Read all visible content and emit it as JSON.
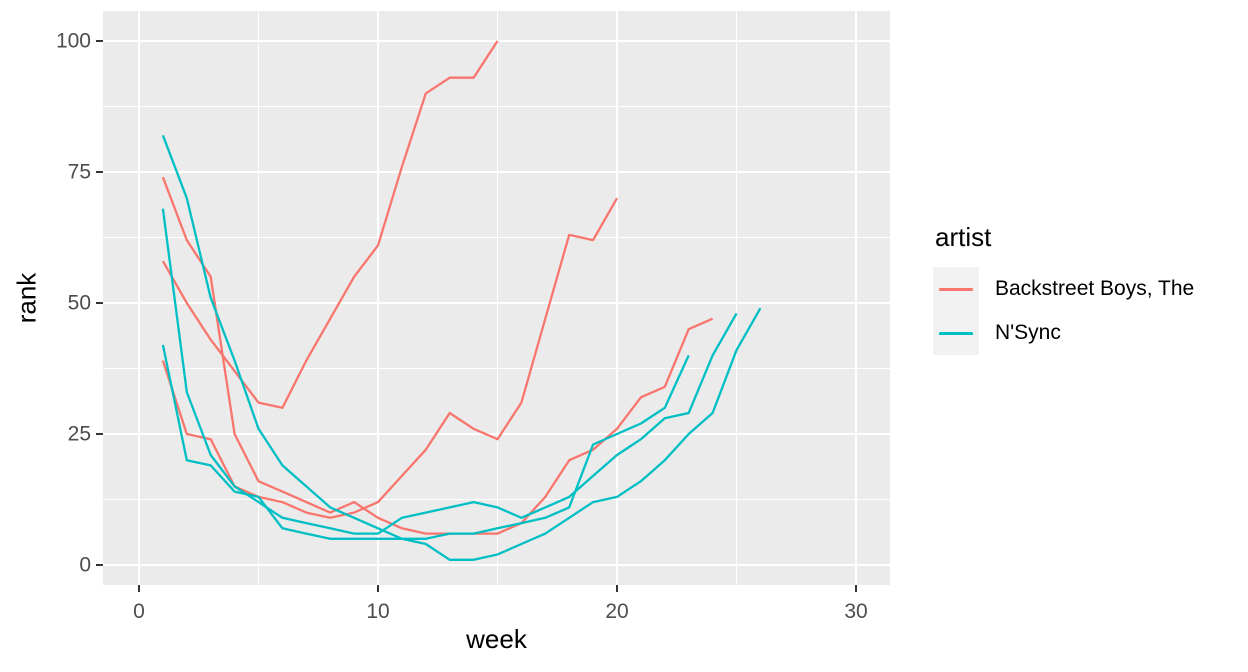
{
  "figure": {
    "background": "#FFFFFF",
    "panel_background": "#EBEBEB",
    "grid_color": "#FFFFFF",
    "tick_color": "#333333",
    "tick_label_color": "#4D4D4D",
    "axis_title_color": "#000000"
  },
  "chart_data": {
    "type": "line",
    "title": "",
    "xlabel": "week",
    "ylabel": "rank",
    "xlim": [
      -1.5,
      31.5
    ],
    "ylim": [
      -5,
      105
    ],
    "x_major_ticks": [
      0,
      10,
      20,
      30
    ],
    "x_minor_ticks": [
      5,
      15,
      25
    ],
    "y_major_ticks": [
      0,
      25,
      50,
      75,
      100
    ],
    "y_minor_ticks": [
      12.5,
      37.5,
      62.5,
      87.5
    ],
    "grid": true,
    "legend": {
      "title": "artist",
      "position": "right",
      "entries": [
        {
          "label": "Backstreet Boys, The",
          "color": "#F8766D"
        },
        {
          "label": "N'Sync",
          "color": "#00BFC4"
        }
      ]
    },
    "series": [
      {
        "artist": "Backstreet Boys, The",
        "color": "#F8766D",
        "start_week": 1,
        "values": [
          74,
          62,
          55,
          25,
          16,
          14,
          12,
          10,
          12,
          9,
          7,
          6,
          6,
          6,
          6,
          8,
          13,
          20,
          22,
          26,
          32,
          34,
          45,
          47
        ]
      },
      {
        "artist": "Backstreet Boys, The",
        "color": "#F8766D",
        "start_week": 1,
        "values": [
          58,
          50,
          43,
          37,
          31,
          30,
          39,
          47,
          55,
          61,
          76,
          90,
          93,
          93,
          100
        ]
      },
      {
        "artist": "Backstreet Boys, The",
        "color": "#F8766D",
        "start_week": 1,
        "values": [
          39,
          25,
          24,
          15,
          13,
          12,
          10,
          9,
          10,
          12,
          17,
          22,
          29,
          26,
          24,
          31,
          47,
          63,
          62,
          70
        ]
      },
      {
        "artist": "N'Sync",
        "color": "#00BFC4",
        "start_week": 1,
        "values": [
          82,
          70,
          51,
          39,
          26,
          19,
          15,
          11,
          9,
          7,
          5,
          4,
          1,
          1,
          2,
          4,
          6,
          9,
          12,
          13,
          16,
          20,
          25,
          29,
          41,
          49
        ]
      },
      {
        "artist": "N'Sync",
        "color": "#00BFC4",
        "start_week": 1,
        "values": [
          68,
          33,
          21,
          15,
          12,
          9,
          8,
          7,
          6,
          6,
          9,
          10,
          11,
          12,
          11,
          9,
          11,
          13,
          17,
          21,
          24,
          28,
          29,
          40,
          48
        ]
      },
      {
        "artist": "N'Sync",
        "color": "#00BFC4",
        "start_week": 1,
        "values": [
          42,
          20,
          19,
          14,
          13,
          7,
          6,
          5,
          5,
          5,
          5,
          5,
          6,
          6,
          7,
          8,
          9,
          11,
          23,
          25,
          27,
          30,
          40
        ]
      }
    ]
  }
}
